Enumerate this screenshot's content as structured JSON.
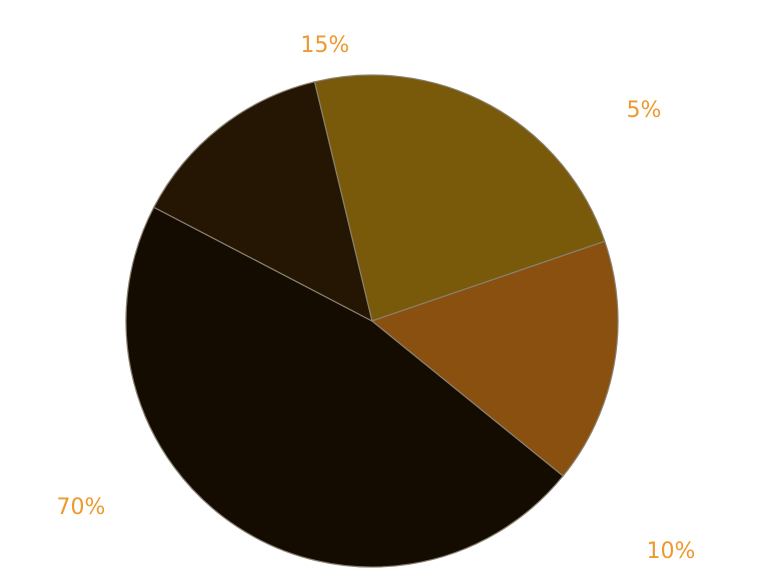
{
  "chart_data": {
    "type": "pie",
    "slices": [
      {
        "label": "5%",
        "share": 0.235,
        "color": "#785a0a"
      },
      {
        "label": "10%",
        "share": 0.161,
        "color": "#895010"
      },
      {
        "label": "70%",
        "share": 0.468,
        "color": "#140c01"
      },
      {
        "label": "15%",
        "share": 0.136,
        "color": "#241603"
      }
    ],
    "label_color": "#ec9a2f"
  }
}
